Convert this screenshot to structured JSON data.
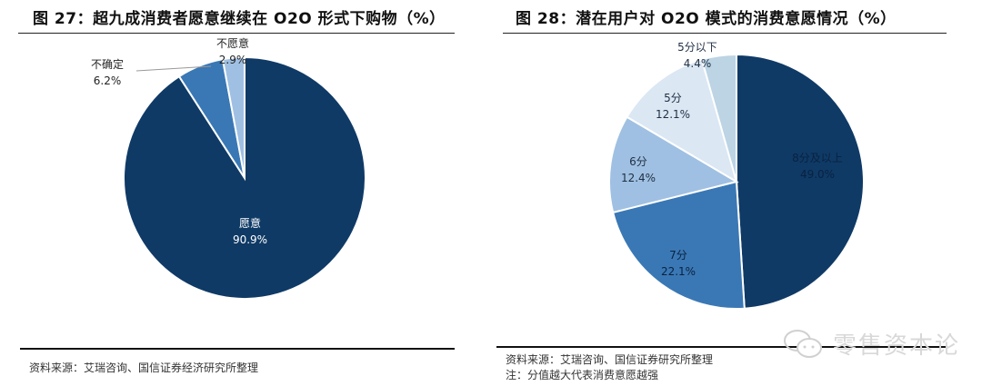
{
  "left_panel": {
    "title": "图 27：超九成消费者愿意继续在 O2O 形式下购物（%）",
    "source": "资料来源：艾瑞咨询、国信证券经济研究所整理"
  },
  "right_panel": {
    "title": "图 28：潜在用户对 O2O 模式的消费意愿情况（%）",
    "source": "资料来源：艾瑞咨询、国信证券研究所整理",
    "note": "注：分值越大代表消费意愿越强"
  },
  "watermark": {
    "text": "零售资本论",
    "icon": "wechat-chat-bubbles-icon"
  },
  "colors": {
    "navy": "#0f3a66",
    "mid_blue": "#3a78b5",
    "light_blue": "#9fc0e2",
    "pale_blue": "#dbe7f3",
    "gray_blue": "#bcd4e4"
  },
  "chart_data": [
    {
      "type": "pie",
      "title": "图 27：超九成消费者愿意继续在 O2O 形式下购物（%）",
      "categories": [
        "愿意",
        "不确定",
        "不愿意"
      ],
      "values": [
        90.9,
        6.2,
        2.9
      ],
      "labels": [
        "90.9%",
        "6.2%",
        "2.9%"
      ],
      "colors": [
        "#0f3a66",
        "#3a78b5",
        "#9fc0e2"
      ],
      "start_angle": "12 o'clock, clockwise, 愿意 first",
      "legend": "none (data labels on slices)"
    },
    {
      "type": "pie",
      "title": "图 28：潜在用户对 O2O 模式的消费意愿情况（%）",
      "categories": [
        "8分及以上",
        "7分",
        "6分",
        "5分",
        "5分以下"
      ],
      "values": [
        49.0,
        22.1,
        12.4,
        12.1,
        4.4
      ],
      "labels": [
        "49.0%",
        "22.1%",
        "12.4%",
        "12.1%",
        "4.4%"
      ],
      "colors": [
        "#0f3a66",
        "#3a78b5",
        "#9fc0e2",
        "#dbe7f3",
        "#bcd4e4"
      ],
      "start_angle": "12 o'clock, clockwise, 8分及以上 first",
      "legend": "none (data labels on slices)"
    }
  ]
}
